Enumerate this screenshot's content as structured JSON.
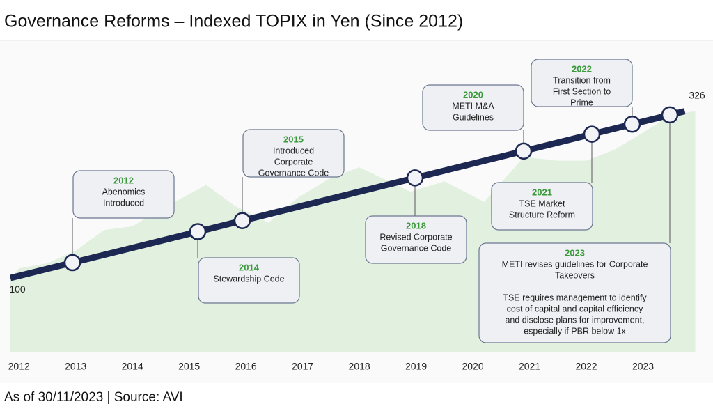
{
  "chart_data": {
    "type": "area",
    "title": "Governance Reforms – Indexed TOPIX in Yen (Since 2012)",
    "footnote": "As of 30/11/2023 | Source: AVI",
    "xlim": [
      2011.85,
      2024.0
    ],
    "xticks": [
      2012,
      2013,
      2014,
      2015,
      2016,
      2017,
      2018,
      2019,
      2020,
      2021,
      2022,
      2023
    ],
    "ylim": [
      0,
      420
    ],
    "series": [
      {
        "color": "#dff0dc",
        "x": [
          2011.85,
          2012.0,
          2012.5,
          2013.0,
          2013.5,
          2014.0,
          2014.5,
          2015.3,
          2015.8,
          2016.4,
          2016.9,
          2017.5,
          2018.0,
          2018.9,
          2019.5,
          2020.2,
          2020.9,
          2021.5,
          2022.0,
          2022.5,
          2023.0,
          2023.5,
          2023.92
        ],
        "values": [
          100,
          113,
          120,
          137,
          165,
          170,
          193,
          226,
          198,
          175,
          208,
          236,
          250,
          217,
          231,
          203,
          264,
          259,
          259,
          274,
          297,
          321,
          326
        ]
      }
    ],
    "start_value": 100,
    "end_value": 326,
    "milestones": [
      {
        "year": "2012",
        "text": [
          [
            "Abenomics",
            "Introduced"
          ]
        ]
      },
      {
        "year": "2014",
        "text": [
          [
            "Stewardship Code"
          ]
        ]
      },
      {
        "year": "2015",
        "text": [
          [
            "Introduced",
            "Corporate",
            "Governance Code"
          ]
        ]
      },
      {
        "year": "2018",
        "text": [
          [
            "Revised Corporate",
            "Governance Code"
          ]
        ]
      },
      {
        "year": "2020",
        "text": [
          [
            "METI M&A",
            "Guidelines"
          ]
        ]
      },
      {
        "year": "2021",
        "text": [
          [
            "TSE Market",
            "Structure Reform"
          ]
        ]
      },
      {
        "year": "2022",
        "text": [
          [
            "Transition from",
            "First Section to",
            "Prime"
          ]
        ]
      },
      {
        "year": "2023",
        "text": [
          [
            "METI revises guidelines for Corporate",
            "Takeovers"
          ],
          [
            "TSE requires management to identify",
            "cost of capital and capital efficiency",
            "and disclose plans for improvement,",
            "especially if PBR below 1x"
          ]
        ]
      }
    ]
  }
}
